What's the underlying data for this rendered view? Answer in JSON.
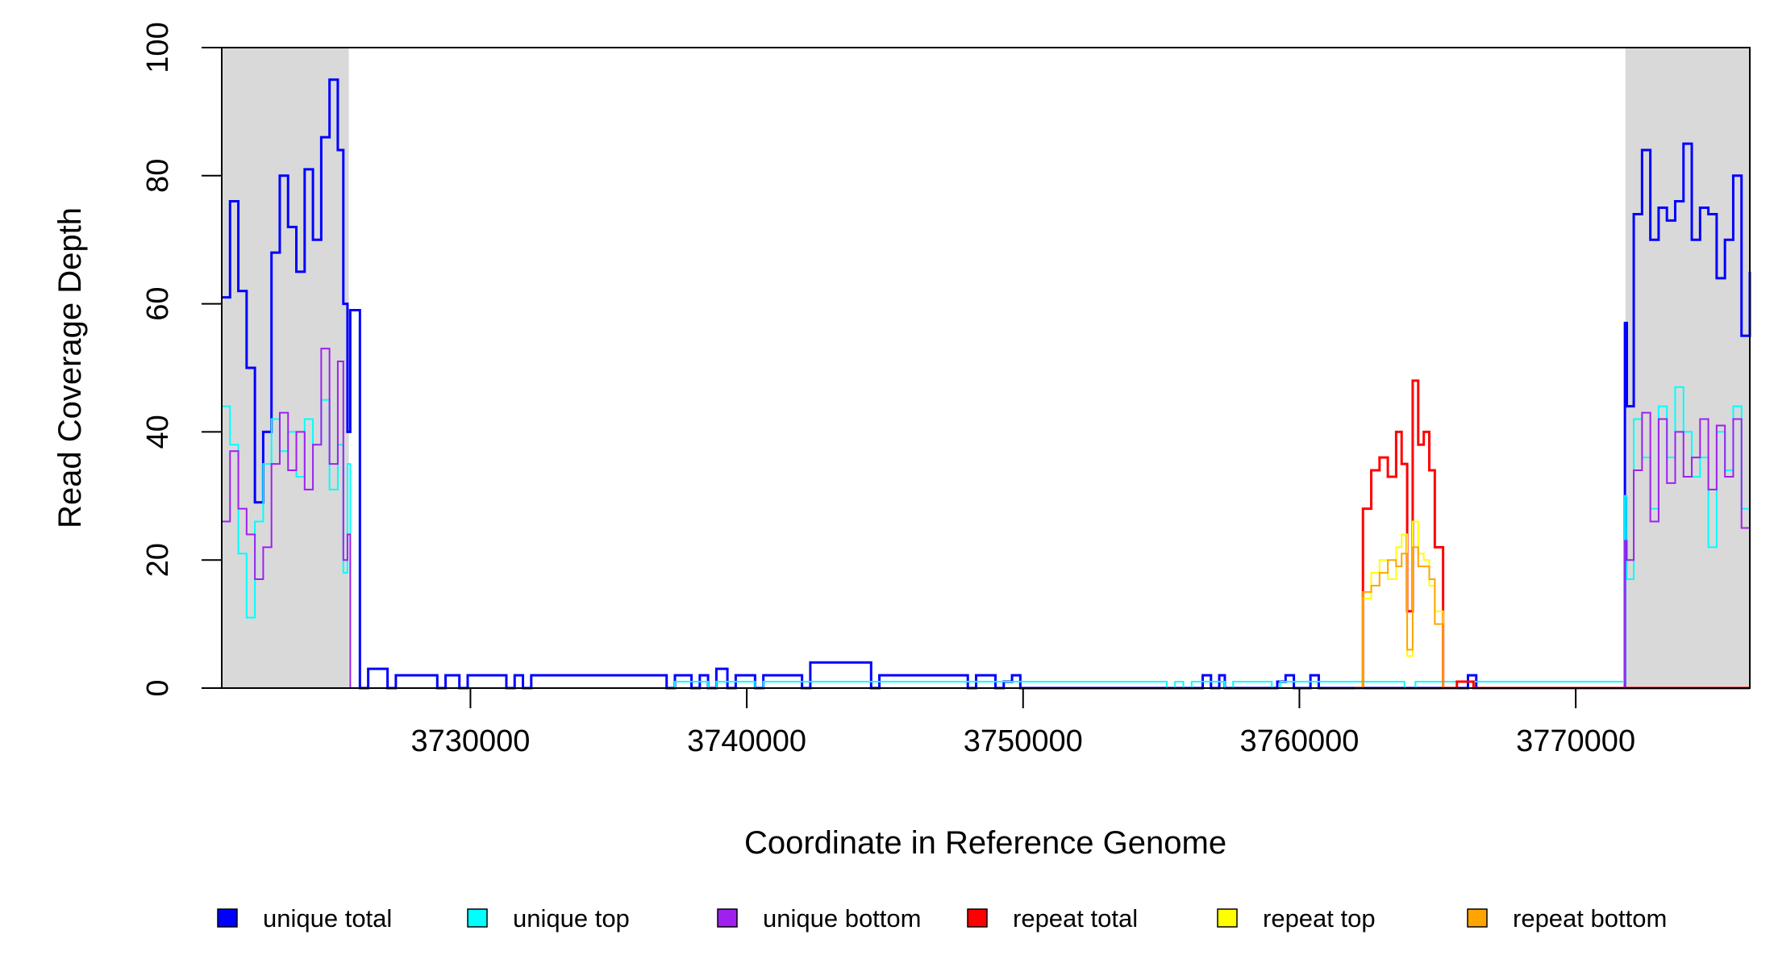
{
  "chart_data": {
    "type": "line",
    "xlabel": "Coordinate in Reference Genome",
    "ylabel": "Read Coverage Depth",
    "xlim": [
      3721000,
      3776300
    ],
    "ylim": [
      0,
      100
    ],
    "x_ticks": [
      3730000,
      3740000,
      3750000,
      3760000,
      3770000
    ],
    "x_tick_labels": [
      "3730000",
      "3740000",
      "3750000",
      "3760000",
      "3770000"
    ],
    "y_ticks": [
      0,
      20,
      40,
      60,
      80,
      100
    ],
    "y_tick_labels": [
      "0",
      "20",
      "40",
      "60",
      "80",
      "100"
    ],
    "grid": false,
    "legend_position": "bottom",
    "shaded_regions": [
      {
        "x": [
          3721000,
          3725600
        ],
        "color": "#d9d9d9"
      },
      {
        "x": [
          3771800,
          3776300
        ],
        "color": "#d9d9d9"
      }
    ],
    "series": [
      {
        "name": "unique total",
        "color": "#0000ff",
        "x": [
          3721000,
          3721300,
          3721600,
          3721900,
          3722200,
          3722500,
          3722800,
          3723100,
          3723400,
          3723700,
          3724000,
          3724300,
          3724600,
          3724900,
          3725200,
          3725400,
          3725550,
          3725650,
          3726000,
          3726300,
          3727000,
          3727300,
          3728800,
          3729100,
          3729600,
          3729900,
          3731300,
          3731600,
          3731900,
          3732200,
          3737100,
          3737400,
          3738000,
          3738300,
          3738600,
          3738900,
          3739300,
          3739600,
          3740300,
          3740600,
          3742000,
          3742300,
          3744500,
          3744800,
          3748000,
          3748300,
          3749000,
          3749300,
          3749600,
          3749900,
          3756200,
          3756500,
          3756800,
          3757100,
          3757300,
          3759200,
          3759500,
          3759800,
          3760400,
          3760700,
          3766100,
          3766400,
          3771780,
          3771850,
          3772100,
          3772400,
          3772700,
          3773000,
          3773300,
          3773600,
          3773900,
          3774200,
          3774500,
          3774800,
          3775100,
          3775400,
          3775700,
          3776000,
          3776300
        ],
        "y": [
          61,
          76,
          62,
          50,
          29,
          40,
          68,
          80,
          72,
          65,
          81,
          70,
          86,
          95,
          84,
          60,
          40,
          59,
          0,
          3,
          0,
          2,
          0,
          2,
          0,
          2,
          0,
          2,
          0,
          2,
          0,
          2,
          0,
          2,
          0,
          3,
          0,
          2,
          0,
          2,
          0,
          4,
          0,
          2,
          0,
          2,
          0,
          1,
          2,
          0,
          0,
          2,
          0,
          2,
          0,
          1,
          2,
          0,
          2,
          0,
          2,
          0,
          57,
          44,
          74,
          84,
          70,
          75,
          73,
          76,
          85,
          70,
          75,
          74,
          64,
          70,
          80,
          55,
          65
        ]
      },
      {
        "name": "unique top",
        "color": "#00ffff",
        "x": [
          3721000,
          3721300,
          3721600,
          3721900,
          3722200,
          3722500,
          3722800,
          3723100,
          3723400,
          3723700,
          3724000,
          3724300,
          3724600,
          3724900,
          3725200,
          3725400,
          3725550,
          3725650,
          3737100,
          3737400,
          3738600,
          3738900,
          3740300,
          3740600,
          3755200,
          3755500,
          3755800,
          3756100,
          3757300,
          3757600,
          3759000,
          3759300,
          3763800,
          3764200,
          3771780,
          3771850,
          3772100,
          3772400,
          3772700,
          3773000,
          3773300,
          3773600,
          3773900,
          3774200,
          3774500,
          3774800,
          3775100,
          3775400,
          3775700,
          3776000,
          3776300
        ],
        "y": [
          44,
          38,
          21,
          11,
          26,
          35,
          42,
          37,
          40,
          33,
          42,
          38,
          45,
          31,
          38,
          18,
          35,
          0,
          0,
          1,
          0,
          1,
          0,
          1,
          0,
          1,
          0,
          1,
          0,
          1,
          0,
          1,
          0,
          1,
          30,
          17,
          42,
          36,
          28,
          44,
          36,
          47,
          40,
          33,
          36,
          22,
          40,
          34,
          44,
          28,
          32
        ]
      },
      {
        "name": "unique bottom",
        "color": "#a020f0",
        "x": [
          3721000,
          3721300,
          3721600,
          3721900,
          3722200,
          3722500,
          3722800,
          3723100,
          3723400,
          3723700,
          3724000,
          3724300,
          3724600,
          3724900,
          3725200,
          3725400,
          3725550,
          3725650,
          3771780,
          3771850,
          3772100,
          3772400,
          3772700,
          3773000,
          3773300,
          3773600,
          3773900,
          3774200,
          3774500,
          3774800,
          3775100,
          3775400,
          3775700,
          3776000,
          3776300
        ],
        "y": [
          26,
          37,
          28,
          24,
          17,
          22,
          35,
          43,
          34,
          40,
          31,
          38,
          53,
          35,
          51,
          20,
          24,
          0,
          23,
          20,
          34,
          43,
          26,
          42,
          32,
          40,
          33,
          36,
          42,
          31,
          41,
          33,
          42,
          25,
          38
        ]
      },
      {
        "name": "repeat total",
        "color": "#ff0000",
        "x": [
          3762000,
          3762300,
          3762600,
          3762900,
          3763200,
          3763500,
          3763700,
          3763900,
          3764100,
          3764300,
          3764500,
          3764700,
          3764900,
          3765200,
          3765400,
          3765700,
          3766000,
          3766300
        ],
        "y": [
          0,
          28,
          34,
          36,
          33,
          40,
          35,
          12,
          48,
          38,
          40,
          34,
          22,
          0,
          0,
          1,
          1,
          0
        ]
      },
      {
        "name": "repeat top",
        "color": "#ffff00",
        "x": [
          3762000,
          3762300,
          3762600,
          3762900,
          3763200,
          3763500,
          3763700,
          3763900,
          3764100,
          3764300,
          3764500,
          3764700,
          3764900,
          3765200,
          3765400
        ],
        "y": [
          0,
          14,
          18,
          20,
          17,
          22,
          24,
          5,
          26,
          21,
          20,
          16,
          12,
          0,
          0
        ]
      },
      {
        "name": "repeat bottom",
        "color": "#ffa500",
        "x": [
          3762000,
          3762300,
          3762600,
          3762900,
          3763200,
          3763500,
          3763700,
          3763900,
          3764100,
          3764300,
          3764500,
          3764700,
          3764900,
          3765200,
          3765400
        ],
        "y": [
          0,
          15,
          16,
          18,
          20,
          19,
          21,
          6,
          22,
          19,
          19,
          17,
          10,
          0,
          0
        ]
      }
    ]
  }
}
